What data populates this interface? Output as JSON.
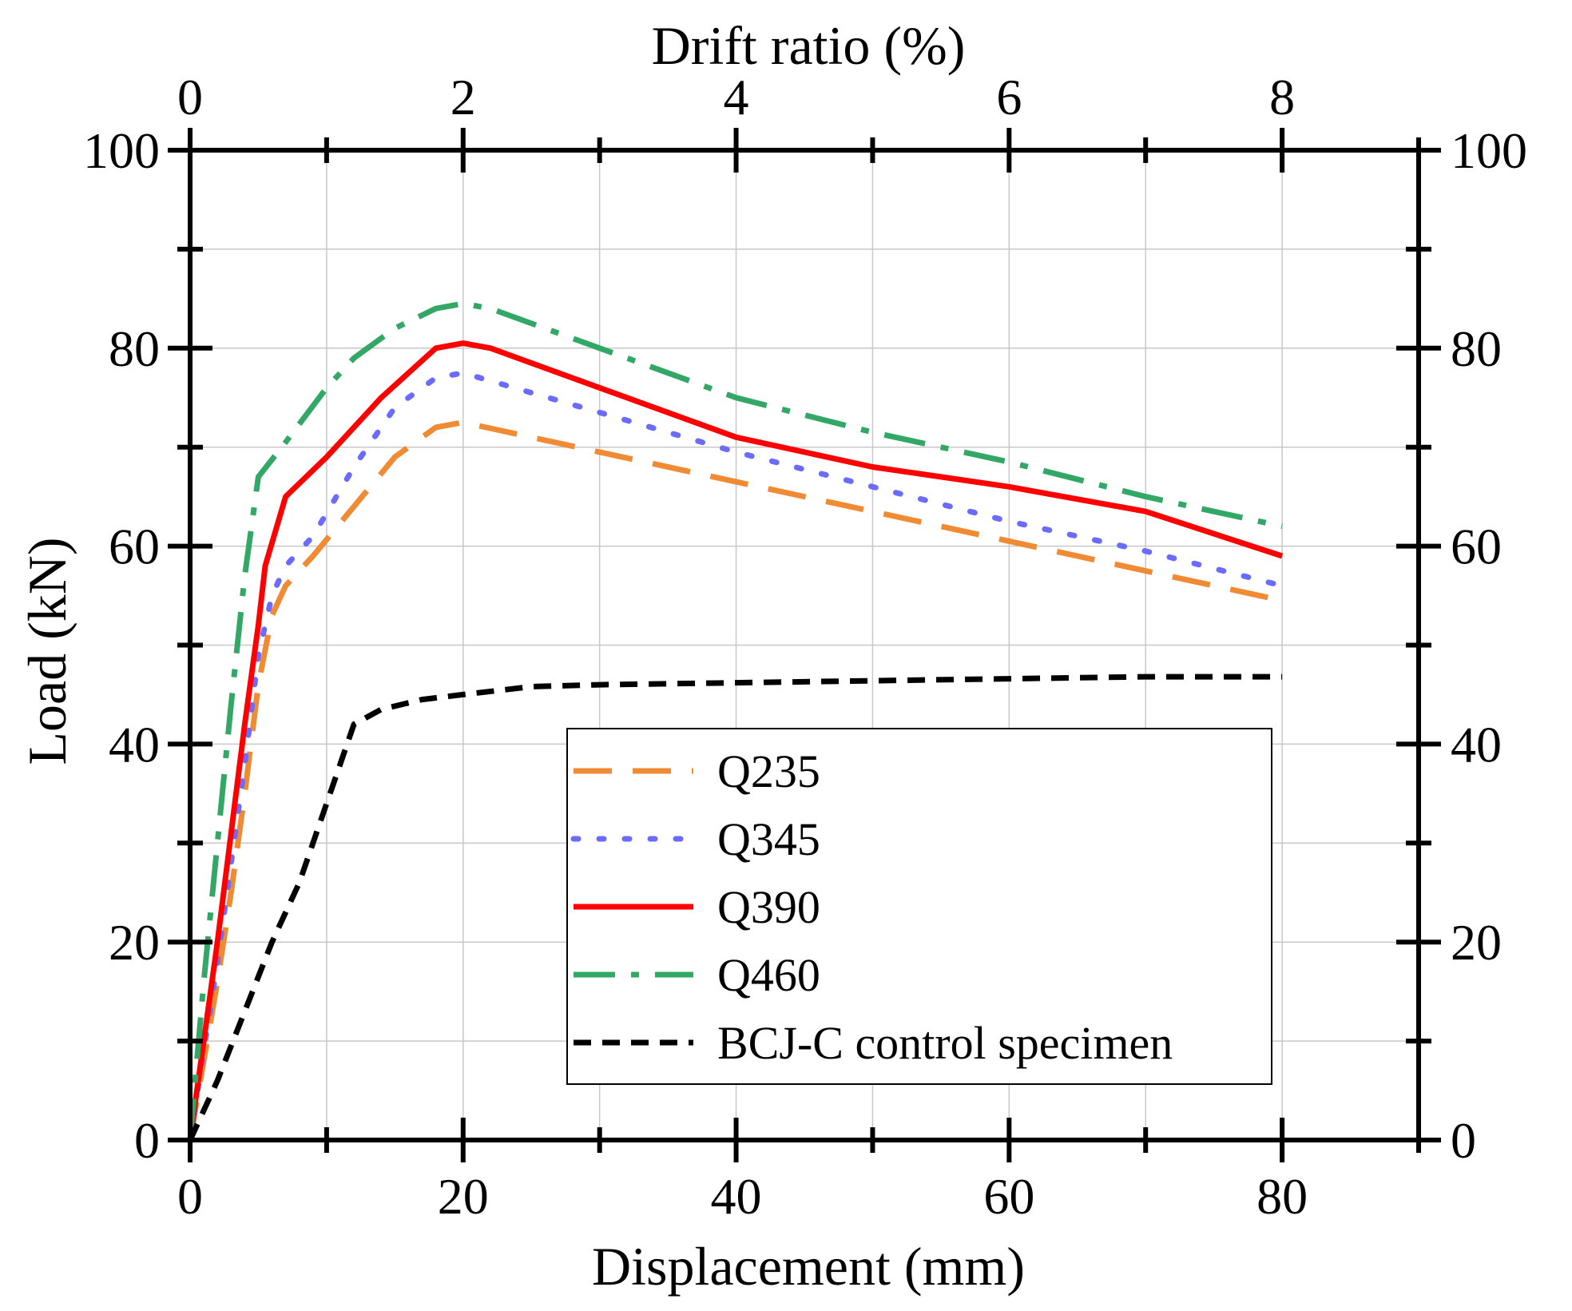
{
  "chart_data": {
    "type": "line",
    "xlabel": "Displacement (mm)",
    "x2label": "Drift ratio (%)",
    "ylabel": "Load (kN)",
    "xlim": [
      0,
      90
    ],
    "ylim": [
      0,
      100
    ],
    "x_ticks": [
      0,
      20,
      40,
      60,
      80
    ],
    "x_minor_ticks": [
      10,
      30,
      50,
      70,
      90
    ],
    "x2_ticks": [
      0,
      2,
      4,
      6,
      8
    ],
    "y_ticks": [
      0,
      20,
      40,
      60,
      80,
      100
    ],
    "y_minor_ticks": [
      10,
      30,
      50,
      70,
      90
    ],
    "grid": true,
    "legend_position": "lower-right",
    "series": [
      {
        "name": "Q235",
        "color": "#f08a33",
        "dash": "dashed",
        "points": [
          [
            0,
            0
          ],
          [
            1,
            8
          ],
          [
            2,
            16
          ],
          [
            3,
            25
          ],
          [
            4,
            35
          ],
          [
            5,
            46
          ],
          [
            6,
            53
          ],
          [
            7,
            56
          ],
          [
            9,
            59
          ],
          [
            12,
            64
          ],
          [
            15,
            69
          ],
          [
            18,
            72
          ],
          [
            20,
            72.5
          ],
          [
            25,
            71
          ],
          [
            30,
            69.5
          ],
          [
            40,
            66.5
          ],
          [
            50,
            63.5
          ],
          [
            60,
            60.5
          ],
          [
            70,
            57.5
          ],
          [
            80,
            54.5
          ]
        ]
      },
      {
        "name": "Q345",
        "color": "#6b6bff",
        "dash": "dotted",
        "points": [
          [
            0,
            0
          ],
          [
            1,
            9
          ],
          [
            2,
            18
          ],
          [
            3,
            28
          ],
          [
            4,
            38
          ],
          [
            5,
            49
          ],
          [
            6,
            55
          ],
          [
            7,
            58
          ],
          [
            9,
            61
          ],
          [
            12,
            68
          ],
          [
            15,
            74
          ],
          [
            18,
            77
          ],
          [
            20,
            77.5
          ],
          [
            25,
            75.5
          ],
          [
            30,
            73.5
          ],
          [
            40,
            69.5
          ],
          [
            50,
            66
          ],
          [
            60,
            62.5
          ],
          [
            70,
            59.5
          ],
          [
            80,
            56
          ]
        ]
      },
      {
        "name": "Q390",
        "color": "#ff0000",
        "dash": "solid",
        "points": [
          [
            0,
            0
          ],
          [
            0.5,
            5
          ],
          [
            1,
            10
          ],
          [
            2,
            20
          ],
          [
            3,
            31
          ],
          [
            4,
            42
          ],
          [
            5,
            52
          ],
          [
            5.5,
            58
          ],
          [
            7,
            65
          ],
          [
            10,
            69
          ],
          [
            14,
            75
          ],
          [
            16,
            77.5
          ],
          [
            18,
            80
          ],
          [
            20,
            80.5
          ],
          [
            22,
            80
          ],
          [
            30,
            76
          ],
          [
            38,
            72
          ],
          [
            40,
            71
          ],
          [
            50,
            68
          ],
          [
            60,
            66
          ],
          [
            70,
            63.5
          ],
          [
            80,
            59
          ]
        ]
      },
      {
        "name": "Q460",
        "color": "#33a866",
        "dash": "dashdot",
        "points": [
          [
            0,
            0
          ],
          [
            0.5,
            8
          ],
          [
            1,
            16
          ],
          [
            2,
            30
          ],
          [
            3,
            44
          ],
          [
            4,
            57
          ],
          [
            5,
            67
          ],
          [
            7,
            70.5
          ],
          [
            10,
            76
          ],
          [
            12,
            79
          ],
          [
            15,
            82
          ],
          [
            18,
            84
          ],
          [
            20,
            84.5
          ],
          [
            22,
            84
          ],
          [
            30,
            80
          ],
          [
            40,
            75
          ],
          [
            50,
            71.5
          ],
          [
            60,
            68.5
          ],
          [
            70,
            65
          ],
          [
            80,
            62
          ]
        ]
      },
      {
        "name": "BCJ-C control specimen",
        "color": "#000000",
        "dash": "shortdash",
        "points": [
          [
            0,
            0
          ],
          [
            2,
            6
          ],
          [
            4,
            13
          ],
          [
            6,
            20
          ],
          [
            8,
            26
          ],
          [
            10,
            34
          ],
          [
            11,
            38
          ],
          [
            12,
            42
          ],
          [
            14,
            43.5
          ],
          [
            17,
            44.5
          ],
          [
            20,
            45
          ],
          [
            25,
            45.8
          ],
          [
            30,
            46
          ],
          [
            40,
            46.2
          ],
          [
            50,
            46.4
          ],
          [
            60,
            46.6
          ],
          [
            70,
            46.8
          ],
          [
            80,
            46.8
          ]
        ]
      }
    ]
  }
}
